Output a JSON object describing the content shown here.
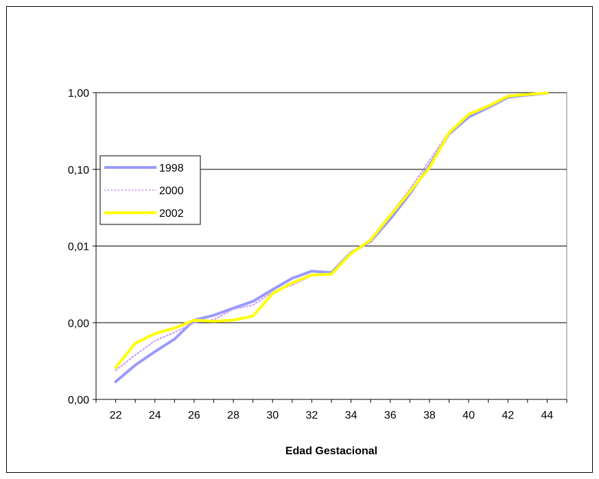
{
  "chart_data": {
    "type": "line",
    "title": "",
    "xlabel": "Edad Gestacional",
    "ylabel": "",
    "yscale": "log",
    "ylim": [
      0.0001,
      1
    ],
    "y_tick_values": [
      0.0001,
      0.001,
      0.01,
      0.1,
      1
    ],
    "y_tick_labels": [
      "0,00",
      "0,00",
      "0,01",
      "0,10",
      "1,00"
    ],
    "x": [
      22,
      23,
      24,
      25,
      26,
      27,
      28,
      29,
      30,
      31,
      32,
      33,
      34,
      35,
      36,
      37,
      38,
      39,
      40,
      41,
      42,
      43,
      44
    ],
    "x_tick_labels": [
      "22",
      "24",
      "26",
      "28",
      "30",
      "32",
      "34",
      "36",
      "38",
      "40",
      "42",
      "44"
    ],
    "x_tick_values": [
      22,
      24,
      26,
      28,
      30,
      32,
      34,
      36,
      38,
      40,
      42,
      44
    ],
    "grid": "horizontal",
    "legend_position": "left",
    "series": [
      {
        "name": "1998",
        "color": "#9999ff",
        "style": "solid",
        "values": [
          0.00017,
          0.00028,
          0.00042,
          0.00061,
          0.00108,
          0.00125,
          0.00155,
          0.0019,
          0.0027,
          0.0038,
          0.0047,
          0.0045,
          0.0082,
          0.0115,
          0.0225,
          0.048,
          0.112,
          0.29,
          0.48,
          0.64,
          0.87,
          0.93,
          0.985
        ]
      },
      {
        "name": "2000",
        "color": "#cc99ff",
        "style": "dotted",
        "values": [
          0.00024,
          0.00038,
          0.00058,
          0.00075,
          0.001,
          0.0011,
          0.0015,
          0.0017,
          0.0025,
          0.0031,
          0.0041,
          0.0044,
          0.0078,
          0.0125,
          0.026,
          0.055,
          0.13,
          0.31,
          0.5,
          0.66,
          0.9,
          0.95,
          0.99
        ]
      },
      {
        "name": "2002",
        "color": "#ffff00",
        "style": "solid",
        "values": [
          0.00026,
          0.00054,
          0.00072,
          0.00085,
          0.00108,
          0.00104,
          0.00108,
          0.00122,
          0.0024,
          0.0033,
          0.0042,
          0.0043,
          0.008,
          0.012,
          0.025,
          0.051,
          0.105,
          0.3,
          0.52,
          0.67,
          0.9,
          0.95,
          0.99
        ]
      }
    ]
  }
}
